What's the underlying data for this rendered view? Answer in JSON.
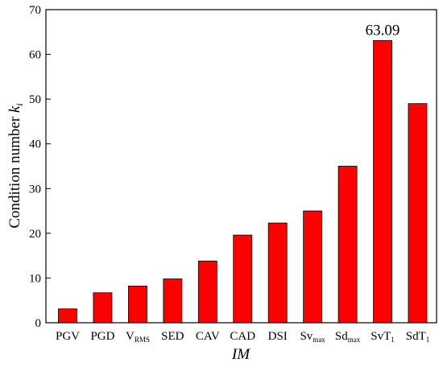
{
  "chart_data": {
    "type": "bar",
    "categories": [
      {
        "main": "PGV",
        "sub": ""
      },
      {
        "main": "PGD",
        "sub": ""
      },
      {
        "main": "V",
        "sub": "RMS"
      },
      {
        "main": "SED",
        "sub": ""
      },
      {
        "main": "CAV",
        "sub": ""
      },
      {
        "main": "CAD",
        "sub": ""
      },
      {
        "main": "DSI",
        "sub": ""
      },
      {
        "main": "Sv",
        "sub": "max"
      },
      {
        "main": "Sd",
        "sub": "max"
      },
      {
        "main": "SvT",
        "sub": "1"
      },
      {
        "main": "SdT",
        "sub": "1"
      }
    ],
    "values": [
      3.1,
      6.7,
      8.2,
      9.8,
      13.8,
      19.6,
      22.3,
      25.0,
      35.0,
      63.09,
      49.0
    ],
    "annotation": {
      "index": 9,
      "text": "63.09"
    },
    "xlabel": "IM",
    "ylabel": {
      "main": "Condition number ",
      "italic": "k",
      "sub": "i"
    },
    "ylim": [
      0,
      70
    ],
    "yticks": [
      0,
      10,
      20,
      30,
      40,
      50,
      60,
      70
    ],
    "bar_color": "#ff0000",
    "bar_edge_color": "#000000",
    "grid": false,
    "legend": "none"
  }
}
